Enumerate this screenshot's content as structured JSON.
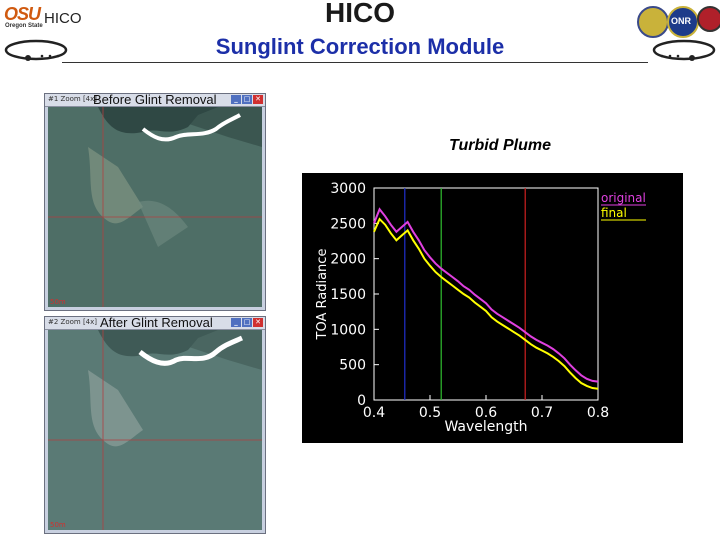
{
  "header": {
    "logo_text": "OSU",
    "logo_sub": "Oregon State",
    "small_title": "HICO",
    "title": "HICO",
    "subtitle": "Sunglint Correction Module",
    "emblem_right": "ONR"
  },
  "windows": [
    {
      "label": "Before Glint Removal",
      "mini": "#1 Zoom [4x]",
      "scale": "50m"
    },
    {
      "label": "After Glint Removal",
      "mini": "#2 Zoom [4x]",
      "scale": "50m"
    }
  ],
  "colors": {
    "subtitle": "#1c2fa8",
    "original": "#e040e0",
    "final": "#ffff00",
    "marker_blue": "#2030d0",
    "marker_green": "#30c030",
    "marker_red": "#d02020"
  },
  "chart_data": {
    "type": "line",
    "title": "Turbid Plume",
    "xlabel": "Wavelength",
    "ylabel": "TOA Radiance",
    "xlim": [
      0.4,
      0.8
    ],
    "ylim": [
      0,
      3000
    ],
    "xticks": [
      "0.4",
      "0.5",
      "0.6",
      "0.7",
      "0.8"
    ],
    "yticks": [
      "0",
      "500",
      "1000",
      "1500",
      "2000",
      "2500",
      "3000"
    ],
    "legend_position": "top-right",
    "markers": [
      0.455,
      0.52,
      0.67
    ],
    "x": [
      0.4,
      0.41,
      0.42,
      0.43,
      0.44,
      0.45,
      0.46,
      0.47,
      0.48,
      0.49,
      0.5,
      0.51,
      0.52,
      0.53,
      0.54,
      0.55,
      0.56,
      0.57,
      0.58,
      0.59,
      0.6,
      0.61,
      0.62,
      0.63,
      0.64,
      0.65,
      0.66,
      0.67,
      0.68,
      0.69,
      0.7,
      0.71,
      0.72,
      0.73,
      0.74,
      0.75,
      0.76,
      0.77,
      0.78,
      0.79,
      0.8
    ],
    "series": [
      {
        "name": "original",
        "values": [
          2500,
          2700,
          2600,
          2480,
          2380,
          2450,
          2520,
          2380,
          2260,
          2120,
          2020,
          1930,
          1860,
          1800,
          1740,
          1680,
          1610,
          1560,
          1490,
          1430,
          1370,
          1280,
          1220,
          1170,
          1120,
          1070,
          1020,
          960,
          900,
          850,
          810,
          770,
          720,
          660,
          590,
          500,
          420,
          350,
          300,
          270,
          260
        ]
      },
      {
        "name": "final",
        "values": [
          2380,
          2560,
          2480,
          2360,
          2260,
          2330,
          2400,
          2260,
          2140,
          2000,
          1900,
          1810,
          1740,
          1680,
          1620,
          1560,
          1500,
          1450,
          1380,
          1320,
          1260,
          1170,
          1110,
          1060,
          1010,
          960,
          910,
          850,
          790,
          740,
          700,
          660,
          610,
          550,
          480,
          390,
          310,
          240,
          200,
          170,
          160
        ]
      }
    ]
  }
}
